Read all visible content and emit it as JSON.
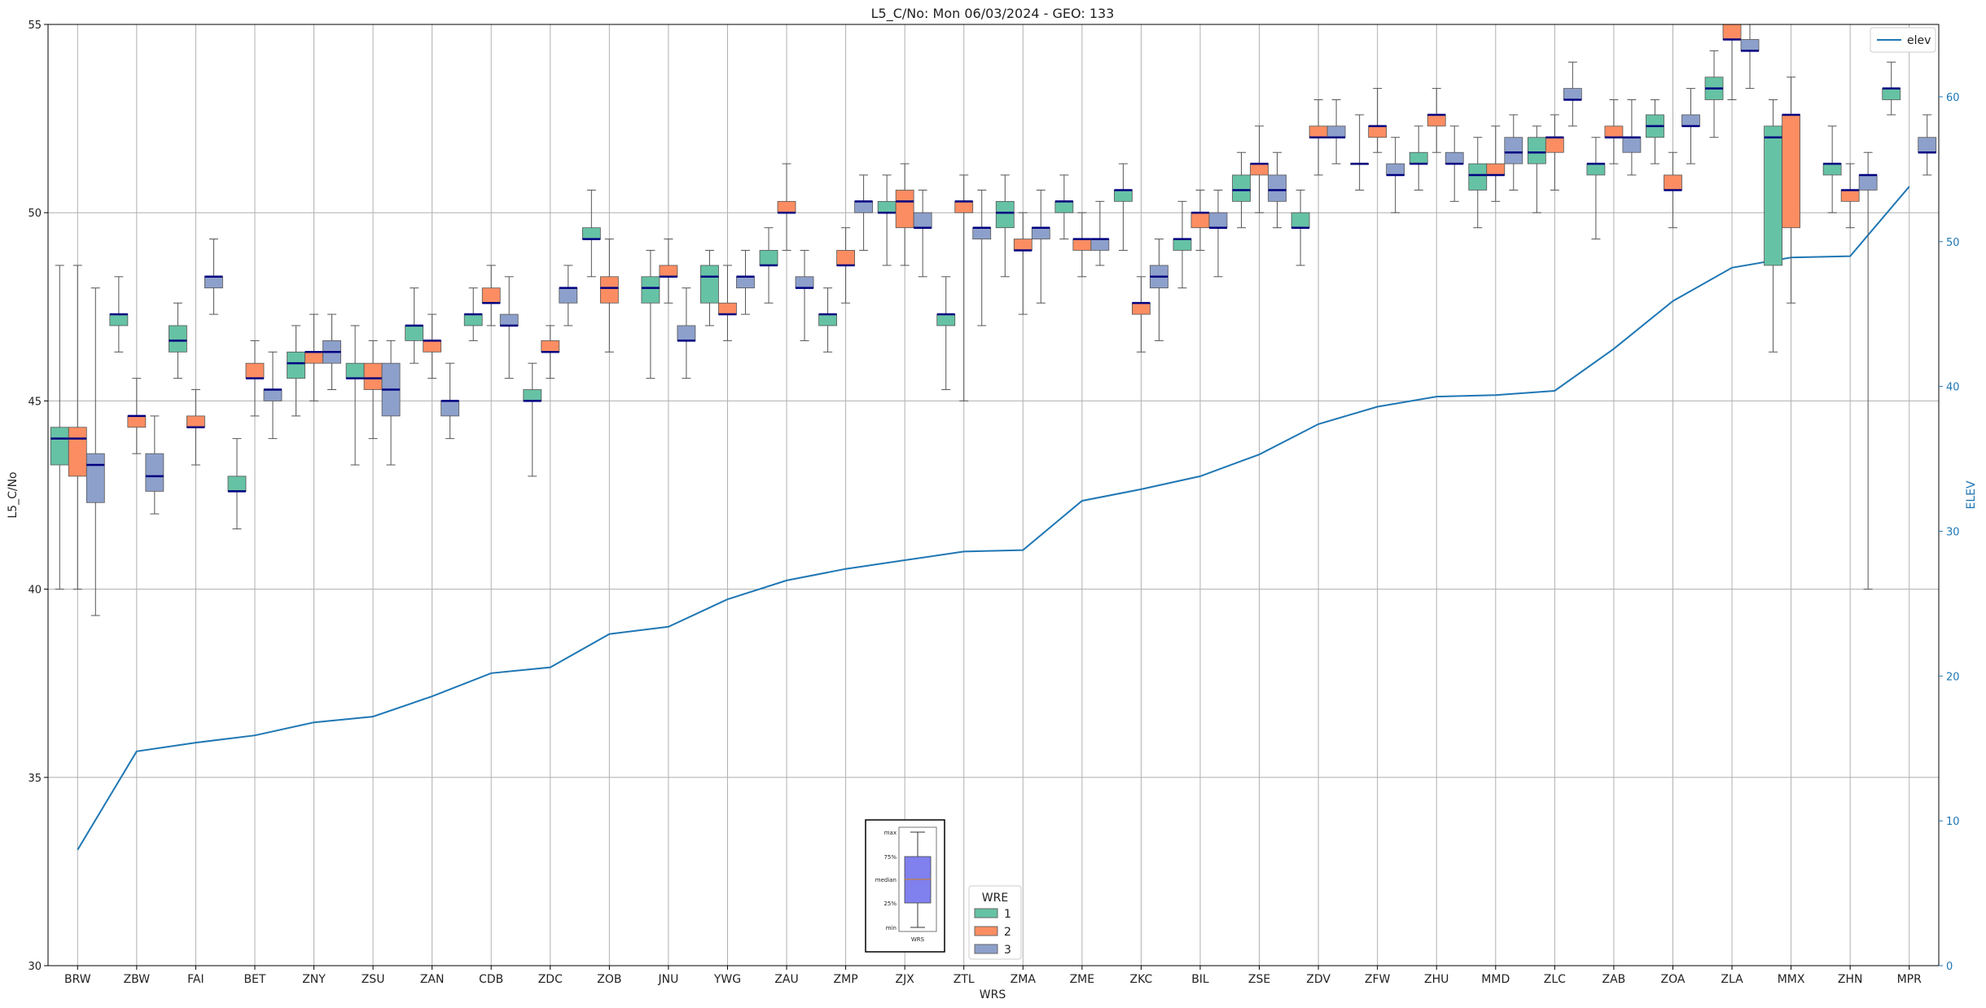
{
  "chart_data": {
    "type": "box",
    "title": "L5_C/No: Mon 06/03/2024 - GEO: 133",
    "xlabel": "WRS",
    "ylabel": "L5_C/No",
    "y2label": "ELEV",
    "ylim": [
      30,
      55
    ],
    "y2lim": [
      0,
      65
    ],
    "yticks": [
      30,
      35,
      40,
      45,
      50,
      55
    ],
    "y2ticks": [
      0,
      10,
      20,
      30,
      40,
      50,
      60
    ],
    "grid": true,
    "colors": {
      "wre1": "#66c2a5",
      "wre2": "#fc8d62",
      "wre3": "#8da0cb",
      "median": "#000080",
      "elev": "#1f77b4"
    },
    "categories": [
      "BRW",
      "ZBW",
      "FAI",
      "BET",
      "ZNY",
      "ZSU",
      "ZAN",
      "CDB",
      "ZDC",
      "ZOB",
      "JNU",
      "YWG",
      "ZAU",
      "ZMP",
      "ZJX",
      "ZTL",
      "ZMA",
      "ZME",
      "ZKC",
      "BIL",
      "ZSE",
      "ZDV",
      "ZFW",
      "ZHU",
      "MMD",
      "ZLC",
      "ZAB",
      "ZOA",
      "ZLA",
      "MMX",
      "ZHN",
      "MPR"
    ],
    "legend": {
      "title": "WRE",
      "placement": "bottom-center",
      "entries": [
        "1",
        "2",
        "3"
      ]
    },
    "legend2": {
      "placement": "top-right",
      "entries": [
        "elev"
      ]
    },
    "inset": {
      "labels": [
        "max",
        "75%",
        "median",
        "25%",
        "min"
      ],
      "xlabel": "WRS"
    },
    "elev": {
      "name": "elev",
      "values": [
        8,
        14.8,
        15.4,
        15.9,
        16.8,
        17.2,
        18.6,
        20.2,
        20.6,
        22.9,
        23.4,
        25.3,
        26.6,
        27.4,
        28,
        28.6,
        28.7,
        32.1,
        32.9,
        33.8,
        35.3,
        37.4,
        38.6,
        39.3,
        39.4,
        39.7,
        42.6,
        45.9,
        48.2,
        48.9,
        49,
        53.8
      ]
    },
    "boxes": [
      {
        "cat": "BRW",
        "wre": "1",
        "min": 40,
        "q1": 43.3,
        "median": 44,
        "q3": 44.3,
        "max": 48.6
      },
      {
        "cat": "BRW",
        "wre": "2",
        "min": 40,
        "q1": 43,
        "median": 44,
        "q3": 44.3,
        "max": 48.6
      },
      {
        "cat": "BRW",
        "wre": "3",
        "min": 39.3,
        "q1": 42.3,
        "median": 43.3,
        "q3": 43.6,
        "max": 48
      },
      {
        "cat": "ZBW",
        "wre": "1",
        "min": 46.3,
        "q1": 47,
        "median": 47.3,
        "q3": 47.3,
        "max": 48.3
      },
      {
        "cat": "ZBW",
        "wre": "2",
        "min": 43.6,
        "q1": 44.3,
        "median": 44.6,
        "q3": 44.6,
        "max": 45.6
      },
      {
        "cat": "ZBW",
        "wre": "3",
        "min": 42,
        "q1": 42.6,
        "median": 43,
        "q3": 43.6,
        "max": 44.6
      },
      {
        "cat": "FAI",
        "wre": "1",
        "min": 45.6,
        "q1": 46.3,
        "median": 46.6,
        "q3": 47,
        "max": 47.6
      },
      {
        "cat": "FAI",
        "wre": "2",
        "min": 43.3,
        "q1": 44.3,
        "median": 44.3,
        "q3": 44.6,
        "max": 45.3
      },
      {
        "cat": "FAI",
        "wre": "3",
        "min": 47.3,
        "q1": 48,
        "median": 48.3,
        "q3": 48.3,
        "max": 49.3
      },
      {
        "cat": "BET",
        "wre": "1",
        "min": 41.6,
        "q1": 42.6,
        "median": 42.6,
        "q3": 43,
        "max": 44
      },
      {
        "cat": "BET",
        "wre": "2",
        "min": 44.6,
        "q1": 45.6,
        "median": 45.6,
        "q3": 46,
        "max": 46.6
      },
      {
        "cat": "BET",
        "wre": "3",
        "min": 44,
        "q1": 45,
        "median": 45.3,
        "q3": 45.3,
        "max": 46.3
      },
      {
        "cat": "ZNY",
        "wre": "1",
        "min": 44.6,
        "q1": 45.6,
        "median": 46,
        "q3": 46.3,
        "max": 47
      },
      {
        "cat": "ZNY",
        "wre": "2",
        "min": 45,
        "q1": 46,
        "median": 46.3,
        "q3": 46.3,
        "max": 47.3
      },
      {
        "cat": "ZNY",
        "wre": "3",
        "min": 45.3,
        "q1": 46,
        "median": 46.3,
        "q3": 46.6,
        "max": 47.3
      },
      {
        "cat": "ZSU",
        "wre": "1",
        "min": 43.3,
        "q1": 45.6,
        "median": 45.6,
        "q3": 46,
        "max": 47
      },
      {
        "cat": "ZSU",
        "wre": "2",
        "min": 44,
        "q1": 45.3,
        "median": 45.6,
        "q3": 46,
        "max": 46.6
      },
      {
        "cat": "ZSU",
        "wre": "3",
        "min": 43.3,
        "q1": 44.6,
        "median": 45.3,
        "q3": 46,
        "max": 46.6
      },
      {
        "cat": "ZAN",
        "wre": "1",
        "min": 46,
        "q1": 46.6,
        "median": 47,
        "q3": 47,
        "max": 48
      },
      {
        "cat": "ZAN",
        "wre": "2",
        "min": 45.6,
        "q1": 46.3,
        "median": 46.6,
        "q3": 46.6,
        "max": 47.3
      },
      {
        "cat": "ZAN",
        "wre": "3",
        "min": 44,
        "q1": 44.6,
        "median": 45,
        "q3": 45,
        "max": 46
      },
      {
        "cat": "CDB",
        "wre": "1",
        "min": 46.6,
        "q1": 47,
        "median": 47.3,
        "q3": 47.3,
        "max": 48
      },
      {
        "cat": "CDB",
        "wre": "2",
        "min": 47,
        "q1": 47.6,
        "median": 47.6,
        "q3": 48,
        "max": 48.6
      },
      {
        "cat": "CDB",
        "wre": "3",
        "min": 45.6,
        "q1": 47,
        "median": 47,
        "q3": 47.3,
        "max": 48.3
      },
      {
        "cat": "ZDC",
        "wre": "1",
        "min": 43,
        "q1": 45,
        "median": 45,
        "q3": 45.3,
        "max": 46
      },
      {
        "cat": "ZDC",
        "wre": "2",
        "min": 45.6,
        "q1": 46.3,
        "median": 46.3,
        "q3": 46.6,
        "max": 47
      },
      {
        "cat": "ZDC",
        "wre": "3",
        "min": 47,
        "q1": 47.6,
        "median": 48,
        "q3": 48,
        "max": 48.6
      },
      {
        "cat": "ZOB",
        "wre": "1",
        "min": 48.3,
        "q1": 49.3,
        "median": 49.3,
        "q3": 49.6,
        "max": 50.6
      },
      {
        "cat": "ZOB",
        "wre": "2",
        "min": 46.3,
        "q1": 47.6,
        "median": 48,
        "q3": 48.3,
        "max": 49.3
      },
      {
        "cat": "JNU",
        "wre": "1",
        "min": 45.6,
        "q1": 47.6,
        "median": 48,
        "q3": 48.3,
        "max": 49
      },
      {
        "cat": "JNU",
        "wre": "2",
        "min": 47.6,
        "q1": 48.3,
        "median": 48.3,
        "q3": 48.6,
        "max": 49.3
      },
      {
        "cat": "JNU",
        "wre": "3",
        "min": 45.6,
        "q1": 46.6,
        "median": 46.6,
        "q3": 47,
        "max": 48
      },
      {
        "cat": "YWG",
        "wre": "1",
        "min": 47,
        "q1": 47.6,
        "median": 48.3,
        "q3": 48.6,
        "max": 49
      },
      {
        "cat": "YWG",
        "wre": "2",
        "min": 46.6,
        "q1": 47.3,
        "median": 47.3,
        "q3": 47.6,
        "max": 48.6
      },
      {
        "cat": "YWG",
        "wre": "3",
        "min": 47.3,
        "q1": 48,
        "median": 48.3,
        "q3": 48.3,
        "max": 49
      },
      {
        "cat": "ZAU",
        "wre": "1",
        "min": 47.6,
        "q1": 48.6,
        "median": 48.6,
        "q3": 49,
        "max": 49.6
      },
      {
        "cat": "ZAU",
        "wre": "2",
        "min": 49,
        "q1": 50,
        "median": 50,
        "q3": 50.3,
        "max": 51.3
      },
      {
        "cat": "ZAU",
        "wre": "3",
        "min": 46.6,
        "q1": 48,
        "median": 48,
        "q3": 48.3,
        "max": 49
      },
      {
        "cat": "ZMP",
        "wre": "1",
        "min": 46.3,
        "q1": 47,
        "median": 47.3,
        "q3": 47.3,
        "max": 48
      },
      {
        "cat": "ZMP",
        "wre": "2",
        "min": 47.6,
        "q1": 48.6,
        "median": 48.6,
        "q3": 49,
        "max": 49.6
      },
      {
        "cat": "ZMP",
        "wre": "3",
        "min": 49,
        "q1": 50,
        "median": 50.3,
        "q3": 50.3,
        "max": 51
      },
      {
        "cat": "ZJX",
        "wre": "1",
        "min": 48.6,
        "q1": 50,
        "median": 50,
        "q3": 50.3,
        "max": 51
      },
      {
        "cat": "ZJX",
        "wre": "2",
        "min": 48.6,
        "q1": 49.6,
        "median": 50.3,
        "q3": 50.6,
        "max": 51.3
      },
      {
        "cat": "ZJX",
        "wre": "3",
        "min": 48.3,
        "q1": 49.6,
        "median": 49.6,
        "q3": 50,
        "max": 50.6
      },
      {
        "cat": "ZTL",
        "wre": "1",
        "min": 45.3,
        "q1": 47,
        "median": 47.3,
        "q3": 47.3,
        "max": 48.3
      },
      {
        "cat": "ZTL",
        "wre": "2",
        "min": 45,
        "q1": 50,
        "median": 50.3,
        "q3": 50.3,
        "max": 51
      },
      {
        "cat": "ZTL",
        "wre": "3",
        "min": 47,
        "q1": 49.3,
        "median": 49.6,
        "q3": 49.6,
        "max": 50.6
      },
      {
        "cat": "ZMA",
        "wre": "1",
        "min": 48.3,
        "q1": 49.6,
        "median": 50,
        "q3": 50.3,
        "max": 51
      },
      {
        "cat": "ZMA",
        "wre": "2",
        "min": 47.3,
        "q1": 49,
        "median": 49,
        "q3": 49.3,
        "max": 50
      },
      {
        "cat": "ZMA",
        "wre": "3",
        "min": 47.6,
        "q1": 49.3,
        "median": 49.6,
        "q3": 49.6,
        "max": 50.6
      },
      {
        "cat": "ZME",
        "wre": "1",
        "min": 49.3,
        "q1": 50,
        "median": 50.3,
        "q3": 50.3,
        "max": 51
      },
      {
        "cat": "ZME",
        "wre": "2",
        "min": 48.3,
        "q1": 49,
        "median": 49.3,
        "q3": 49.3,
        "max": 50
      },
      {
        "cat": "ZME",
        "wre": "3",
        "min": 48.6,
        "q1": 49,
        "median": 49.3,
        "q3": 49.3,
        "max": 50.3
      },
      {
        "cat": "ZKC",
        "wre": "1",
        "min": 49,
        "q1": 50.3,
        "median": 50.6,
        "q3": 50.6,
        "max": 51.3
      },
      {
        "cat": "ZKC",
        "wre": "2",
        "min": 46.3,
        "q1": 47.3,
        "median": 47.6,
        "q3": 47.6,
        "max": 48.3
      },
      {
        "cat": "ZKC",
        "wre": "3",
        "min": 46.6,
        "q1": 48,
        "median": 48.3,
        "q3": 48.6,
        "max": 49.3
      },
      {
        "cat": "BIL",
        "wre": "1",
        "min": 48,
        "q1": 49,
        "median": 49.3,
        "q3": 49.3,
        "max": 50.3
      },
      {
        "cat": "BIL",
        "wre": "2",
        "min": 49,
        "q1": 49.6,
        "median": 50,
        "q3": 50,
        "max": 50.6
      },
      {
        "cat": "BIL",
        "wre": "3",
        "min": 48.3,
        "q1": 49.6,
        "median": 49.6,
        "q3": 50,
        "max": 50.6
      },
      {
        "cat": "ZSE",
        "wre": "1",
        "min": 49.6,
        "q1": 50.3,
        "median": 50.6,
        "q3": 51,
        "max": 51.6
      },
      {
        "cat": "ZSE",
        "wre": "2",
        "min": 50,
        "q1": 51,
        "median": 51.3,
        "q3": 51.3,
        "max": 52.3
      },
      {
        "cat": "ZSE",
        "wre": "3",
        "min": 49.6,
        "q1": 50.3,
        "median": 50.6,
        "q3": 51,
        "max": 51.6
      },
      {
        "cat": "ZDV",
        "wre": "1",
        "min": 48.6,
        "q1": 49.6,
        "median": 49.6,
        "q3": 50,
        "max": 50.6
      },
      {
        "cat": "ZDV",
        "wre": "2",
        "min": 51,
        "q1": 52,
        "median": 52,
        "q3": 52.3,
        "max": 53
      },
      {
        "cat": "ZDV",
        "wre": "3",
        "min": 51.3,
        "q1": 52,
        "median": 52,
        "q3": 52.3,
        "max": 53
      },
      {
        "cat": "ZFW",
        "wre": "1",
        "min": 50.6,
        "q1": 51.3,
        "median": 51.3,
        "q3": 51.3,
        "max": 52.6
      },
      {
        "cat": "ZFW",
        "wre": "2",
        "min": 51.6,
        "q1": 52,
        "median": 52.3,
        "q3": 52.3,
        "max": 53.3
      },
      {
        "cat": "ZFW",
        "wre": "3",
        "min": 50,
        "q1": 51,
        "median": 51,
        "q3": 51.3,
        "max": 52
      },
      {
        "cat": "ZHU",
        "wre": "1",
        "min": 50.6,
        "q1": 51.3,
        "median": 51.3,
        "q3": 51.6,
        "max": 52.3
      },
      {
        "cat": "ZHU",
        "wre": "2",
        "min": 51.6,
        "q1": 52.3,
        "median": 52.6,
        "q3": 52.6,
        "max": 53.3
      },
      {
        "cat": "ZHU",
        "wre": "3",
        "min": 50.3,
        "q1": 51.3,
        "median": 51.3,
        "q3": 51.6,
        "max": 52.3
      },
      {
        "cat": "MMD",
        "wre": "1",
        "min": 49.6,
        "q1": 50.6,
        "median": 51,
        "q3": 51.3,
        "max": 52
      },
      {
        "cat": "MMD",
        "wre": "2",
        "min": 50.3,
        "q1": 51,
        "median": 51,
        "q3": 51.3,
        "max": 52.3
      },
      {
        "cat": "MMD",
        "wre": "3",
        "min": 50.6,
        "q1": 51.3,
        "median": 51.6,
        "q3": 52,
        "max": 52.6
      },
      {
        "cat": "ZLC",
        "wre": "1",
        "min": 50,
        "q1": 51.3,
        "median": 51.6,
        "q3": 52,
        "max": 52.3
      },
      {
        "cat": "ZLC",
        "wre": "2",
        "min": 50.6,
        "q1": 51.6,
        "median": 52,
        "q3": 52,
        "max": 52.6
      },
      {
        "cat": "ZLC",
        "wre": "3",
        "min": 52.3,
        "q1": 53,
        "median": 53,
        "q3": 53.3,
        "max": 54
      },
      {
        "cat": "ZAB",
        "wre": "1",
        "min": 49.3,
        "q1": 51,
        "median": 51.3,
        "q3": 51.3,
        "max": 52
      },
      {
        "cat": "ZAB",
        "wre": "2",
        "min": 51.3,
        "q1": 52,
        "median": 52,
        "q3": 52.3,
        "max": 53
      },
      {
        "cat": "ZAB",
        "wre": "3",
        "min": 51,
        "q1": 51.6,
        "median": 52,
        "q3": 52,
        "max": 53
      },
      {
        "cat": "ZOA",
        "wre": "1",
        "min": 51.3,
        "q1": 52,
        "median": 52.3,
        "q3": 52.6,
        "max": 53
      },
      {
        "cat": "ZOA",
        "wre": "2",
        "min": 49.6,
        "q1": 50.6,
        "median": 50.6,
        "q3": 51,
        "max": 51.6
      },
      {
        "cat": "ZOA",
        "wre": "3",
        "min": 51.3,
        "q1": 52.3,
        "median": 52.3,
        "q3": 52.6,
        "max": 53.3
      },
      {
        "cat": "ZLA",
        "wre": "1",
        "min": 52,
        "q1": 53,
        "median": 53.3,
        "q3": 53.6,
        "max": 54.3
      },
      {
        "cat": "ZLA",
        "wre": "2",
        "min": 53,
        "q1": 54.6,
        "median": 54.6,
        "q3": 55,
        "max": 55
      },
      {
        "cat": "ZLA",
        "wre": "3",
        "min": 53.3,
        "q1": 54.3,
        "median": 54.3,
        "q3": 54.6,
        "max": 55
      },
      {
        "cat": "MMX",
        "wre": "1",
        "min": 46.3,
        "q1": 48.6,
        "median": 52,
        "q3": 52.3,
        "max": 53
      },
      {
        "cat": "MMX",
        "wre": "2",
        "min": 47.6,
        "q1": 49.6,
        "median": 52.6,
        "q3": 52.6,
        "max": 53.6
      },
      {
        "cat": "ZHN",
        "wre": "1",
        "min": 50,
        "q1": 51,
        "median": 51.3,
        "q3": 51.3,
        "max": 52.3
      },
      {
        "cat": "ZHN",
        "wre": "2",
        "min": 49.6,
        "q1": 50.3,
        "median": 50.6,
        "q3": 50.6,
        "max": 51.3
      },
      {
        "cat": "ZHN",
        "wre": "3",
        "min": 40,
        "q1": 50.6,
        "median": 51,
        "q3": 51,
        "max": 51.6
      },
      {
        "cat": "MPR",
        "wre": "1",
        "min": 52.6,
        "q1": 53,
        "median": 53.3,
        "q3": 53.3,
        "max": 54
      },
      {
        "cat": "MPR",
        "wre": "3",
        "min": 51,
        "q1": 51.6,
        "median": 51.6,
        "q3": 52,
        "max": 52.6
      }
    ]
  }
}
